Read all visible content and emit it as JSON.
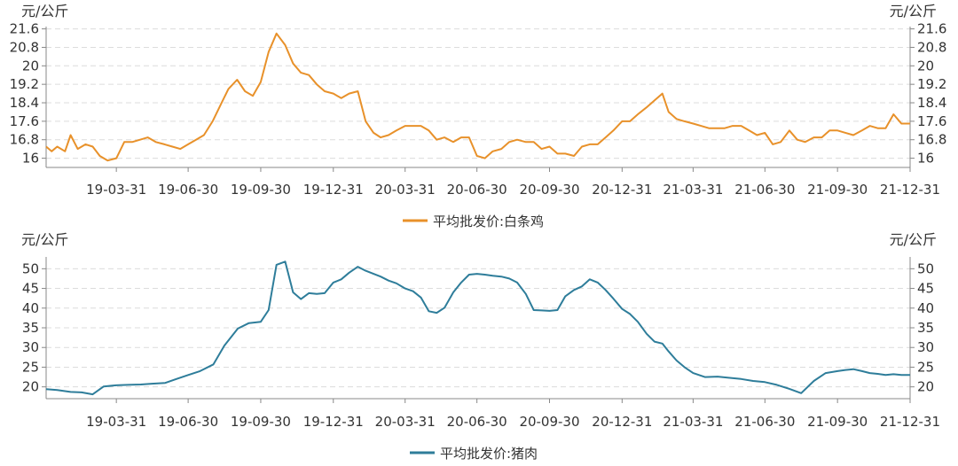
{
  "chart_data": [
    {
      "type": "line",
      "unit_left": "元/公斤",
      "unit_right": "元/公斤",
      "y_ticks": [
        "16",
        "16.8",
        "17.6",
        "18.4",
        "19.2",
        "20",
        "20.8",
        "21.6"
      ],
      "y_tick_values": [
        16,
        16.8,
        17.6,
        18.4,
        19.2,
        20,
        20.8,
        21.6
      ],
      "ylim": [
        15.6,
        21.7
      ],
      "x_tick_labels": [
        "19-03-31",
        "19-06-30",
        "19-09-30",
        "19-12-31",
        "20-03-31",
        "20-06-30",
        "20-09-30",
        "20-12-31",
        "21-03-31",
        "21-06-30",
        "21-09-30",
        "21-12-31"
      ],
      "xlim": [
        "2019-01-01",
        "2021-12-31"
      ],
      "grid": true,
      "legend_position": "bottom",
      "series": [
        {
          "name": "平均批发价:白条鸡",
          "color": "#e8912a",
          "x": [
            "2019-01-01",
            "2019-01-08",
            "2019-01-15",
            "2019-01-25",
            "2019-02-01",
            "2019-02-10",
            "2019-02-20",
            "2019-03-01",
            "2019-03-10",
            "2019-03-20",
            "2019-03-31",
            "2019-04-10",
            "2019-04-20",
            "2019-04-30",
            "2019-05-10",
            "2019-05-20",
            "2019-05-31",
            "2019-06-10",
            "2019-06-20",
            "2019-06-30",
            "2019-07-10",
            "2019-07-20",
            "2019-07-31",
            "2019-08-10",
            "2019-08-20",
            "2019-08-31",
            "2019-09-10",
            "2019-09-20",
            "2019-09-30",
            "2019-10-10",
            "2019-10-20",
            "2019-10-31",
            "2019-11-10",
            "2019-11-20",
            "2019-11-30",
            "2019-12-10",
            "2019-12-20",
            "2019-12-31",
            "2020-01-10",
            "2020-01-20",
            "2020-01-31",
            "2020-02-10",
            "2020-02-20",
            "2020-02-29",
            "2020-03-10",
            "2020-03-20",
            "2020-03-31",
            "2020-04-10",
            "2020-04-20",
            "2020-04-30",
            "2020-05-10",
            "2020-05-20",
            "2020-05-31",
            "2020-06-10",
            "2020-06-20",
            "2020-06-30",
            "2020-07-10",
            "2020-07-20",
            "2020-07-31",
            "2020-08-10",
            "2020-08-20",
            "2020-08-31",
            "2020-09-10",
            "2020-09-20",
            "2020-09-30",
            "2020-10-10",
            "2020-10-20",
            "2020-10-31",
            "2020-11-10",
            "2020-11-20",
            "2020-11-30",
            "2020-12-10",
            "2020-12-20",
            "2020-12-31",
            "2021-01-10",
            "2021-01-20",
            "2021-01-31",
            "2021-02-10",
            "2021-02-20",
            "2021-02-28",
            "2021-03-10",
            "2021-03-20",
            "2021-03-31",
            "2021-04-10",
            "2021-04-20",
            "2021-04-30",
            "2021-05-10",
            "2021-05-20",
            "2021-05-31",
            "2021-06-10",
            "2021-06-20",
            "2021-06-30",
            "2021-07-10",
            "2021-07-20",
            "2021-07-31",
            "2021-08-10",
            "2021-08-20",
            "2021-08-31",
            "2021-09-10",
            "2021-09-20",
            "2021-09-30",
            "2021-10-10",
            "2021-10-20",
            "2021-10-31",
            "2021-11-10",
            "2021-11-20",
            "2021-11-30",
            "2021-12-10",
            "2021-12-20",
            "2021-12-31"
          ],
          "values": [
            16.5,
            16.3,
            16.5,
            16.3,
            17.0,
            16.4,
            16.6,
            16.5,
            16.1,
            15.9,
            16.0,
            16.7,
            16.7,
            16.8,
            16.9,
            16.7,
            16.6,
            16.5,
            16.4,
            16.6,
            16.8,
            17.0,
            17.6,
            18.3,
            19.0,
            19.4,
            18.9,
            18.7,
            19.3,
            20.6,
            21.4,
            20.9,
            20.1,
            19.7,
            19.6,
            19.2,
            18.9,
            18.8,
            18.6,
            18.8,
            18.9,
            17.6,
            17.1,
            16.9,
            17.0,
            17.2,
            17.4,
            17.4,
            17.4,
            17.2,
            16.8,
            16.9,
            16.7,
            16.9,
            16.9,
            16.1,
            16.0,
            16.3,
            16.4,
            16.7,
            16.8,
            16.7,
            16.7,
            16.4,
            16.5,
            16.2,
            16.2,
            16.1,
            16.5,
            16.6,
            16.6,
            16.9,
            17.2,
            17.6,
            17.6,
            17.9,
            18.2,
            18.5,
            18.8,
            18.0,
            17.7,
            17.6,
            17.5,
            17.4,
            17.3,
            17.3,
            17.3,
            17.4,
            17.4,
            17.2,
            17.0,
            17.1,
            16.6,
            16.7,
            17.2,
            16.8,
            16.7,
            16.9,
            16.9,
            17.2,
            17.2,
            17.1,
            17.0,
            17.2,
            17.4,
            17.3,
            17.3,
            17.9,
            17.5,
            17.5
          ]
        }
      ]
    },
    {
      "type": "line",
      "unit_left": "元/公斤",
      "unit_right": "元/公斤",
      "y_ticks": [
        "20",
        "25",
        "30",
        "35",
        "40",
        "45",
        "50"
      ],
      "y_tick_values": [
        20,
        25,
        30,
        35,
        40,
        45,
        50
      ],
      "ylim": [
        17,
        53
      ],
      "x_tick_labels": [
        "19-03-31",
        "19-06-30",
        "19-09-30",
        "19-12-31",
        "20-03-31",
        "20-06-30",
        "20-09-30",
        "20-12-31",
        "21-03-31",
        "21-06-30",
        "21-09-30",
        "21-12-31"
      ],
      "xlim": [
        "2019-01-01",
        "2021-12-31"
      ],
      "grid": true,
      "legend_position": "bottom",
      "series": [
        {
          "name": "平均批发价:猪肉",
          "color": "#2e7d9a",
          "x": [
            "2019-01-01",
            "2019-01-15",
            "2019-02-01",
            "2019-02-15",
            "2019-03-01",
            "2019-03-15",
            "2019-03-31",
            "2019-04-15",
            "2019-05-01",
            "2019-05-15",
            "2019-06-01",
            "2019-06-15",
            "2019-06-30",
            "2019-07-15",
            "2019-08-01",
            "2019-08-15",
            "2019-09-01",
            "2019-09-15",
            "2019-09-30",
            "2019-10-10",
            "2019-10-20",
            "2019-10-31",
            "2019-11-10",
            "2019-11-20",
            "2019-11-30",
            "2019-12-10",
            "2019-12-20",
            "2019-12-31",
            "2020-01-10",
            "2020-01-20",
            "2020-01-31",
            "2020-02-10",
            "2020-02-20",
            "2020-02-29",
            "2020-03-10",
            "2020-03-20",
            "2020-03-31",
            "2020-04-10",
            "2020-04-20",
            "2020-04-30",
            "2020-05-10",
            "2020-05-20",
            "2020-05-31",
            "2020-06-10",
            "2020-06-20",
            "2020-06-30",
            "2020-07-10",
            "2020-07-20",
            "2020-07-31",
            "2020-08-10",
            "2020-08-20",
            "2020-08-31",
            "2020-09-10",
            "2020-09-20",
            "2020-09-30",
            "2020-10-10",
            "2020-10-20",
            "2020-10-31",
            "2020-11-10",
            "2020-11-20",
            "2020-11-30",
            "2020-12-10",
            "2020-12-20",
            "2020-12-31",
            "2021-01-10",
            "2021-01-20",
            "2021-01-31",
            "2021-02-10",
            "2021-02-20",
            "2021-02-28",
            "2021-03-10",
            "2021-03-20",
            "2021-03-31",
            "2021-04-15",
            "2021-05-01",
            "2021-05-15",
            "2021-05-31",
            "2021-06-15",
            "2021-06-30",
            "2021-07-15",
            "2021-07-31",
            "2021-08-15",
            "2021-08-31",
            "2021-09-15",
            "2021-09-30",
            "2021-10-10",
            "2021-10-20",
            "2021-10-31",
            "2021-11-10",
            "2021-11-20",
            "2021-11-30",
            "2021-12-10",
            "2021-12-20",
            "2021-12-31"
          ],
          "values": [
            19.4,
            19.2,
            18.7,
            18.6,
            18.1,
            20.1,
            20.4,
            20.5,
            20.6,
            20.8,
            21.0,
            22.0,
            23.0,
            24.0,
            25.7,
            30.5,
            34.8,
            36.2,
            36.5,
            39.5,
            51.0,
            51.8,
            44.0,
            42.3,
            43.8,
            43.6,
            43.8,
            46.5,
            47.3,
            49.0,
            50.5,
            49.5,
            48.7,
            48.0,
            47.0,
            46.3,
            45.0,
            44.3,
            42.7,
            39.2,
            38.8,
            40.1,
            44.0,
            46.5,
            48.5,
            48.7,
            48.5,
            48.2,
            48.0,
            47.5,
            46.5,
            43.6,
            39.5,
            39.4,
            39.3,
            39.5,
            43.0,
            44.6,
            45.5,
            47.3,
            46.5,
            44.6,
            42.4,
            39.8,
            38.5,
            36.5,
            33.5,
            31.5,
            31.0,
            29.0,
            26.7,
            25.0,
            23.5,
            22.5,
            22.6,
            22.3,
            22.0,
            21.5,
            21.2,
            20.5,
            19.5,
            18.4,
            21.5,
            23.5,
            24.0,
            24.3,
            24.5,
            24.0,
            23.5,
            23.3,
            23.0,
            23.2,
            23.0,
            23.0
          ]
        }
      ]
    }
  ]
}
